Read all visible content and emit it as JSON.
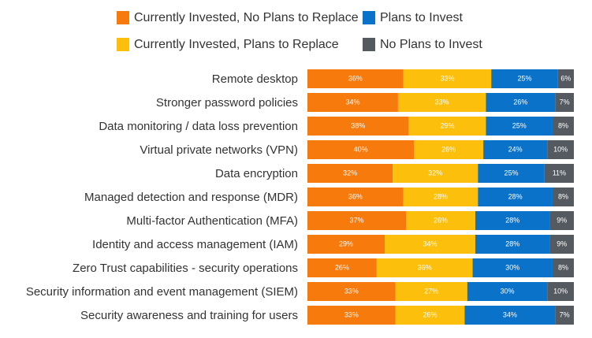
{
  "chart_data": {
    "type": "stacked-bar-horizontal",
    "categories": [
      "Remote desktop",
      "Stronger password policies",
      "Data monitoring / data loss prevention",
      "Virtual private networks (VPN)",
      "Data encryption",
      "Managed detection and response (MDR)",
      "Multi-factor Authentication (MFA)",
      "Identity and access management (IAM)",
      "Zero Trust capabilities - security operations",
      "Security information and event management (SIEM)",
      "Security awareness and training for users"
    ],
    "xlim": [
      0,
      100
    ],
    "legend": "top",
    "series": [
      {
        "name": "Currently Invested, No Plans to Replace",
        "color": "#f77a0c",
        "values": [
          36,
          34,
          38,
          40,
          32,
          36,
          37,
          29,
          26,
          33,
          33
        ],
        "value_labels": [
          "36%",
          "34%",
          "38%",
          "40%",
          "32%",
          "36%",
          "37%",
          "29%",
          "26%",
          "33%",
          "33%"
        ]
      },
      {
        "name": "Currently Invested, Plans to Replace",
        "color": "#fcbf0b",
        "values": [
          33,
          33,
          29,
          26,
          32,
          28,
          26,
          34,
          36,
          27,
          26
        ],
        "value_labels": [
          "33%",
          "33%",
          "29%",
          "26%",
          "32%",
          "28%",
          "26%",
          "34%",
          "36%",
          "27%",
          "26%"
        ]
      },
      {
        "name": "Plans to Invest",
        "color": "#0b72c9",
        "values": [
          25,
          26,
          25,
          24,
          25,
          28,
          28,
          28,
          30,
          30,
          34
        ],
        "value_labels": [
          "25%",
          "26%",
          "25%",
          "24%",
          "25%",
          "28%",
          "28%",
          "28%",
          "30%",
          "30%",
          "34%"
        ]
      },
      {
        "name": "No Plans to Invest",
        "color": "#555a60",
        "values": [
          6,
          7,
          8,
          10,
          11,
          8,
          9,
          9,
          8,
          10,
          7
        ],
        "value_labels": [
          "6%",
          "7%",
          "8%",
          "10%",
          "11%",
          "8%",
          "9%",
          "9%",
          "8%",
          "10%",
          "7%"
        ]
      }
    ]
  }
}
